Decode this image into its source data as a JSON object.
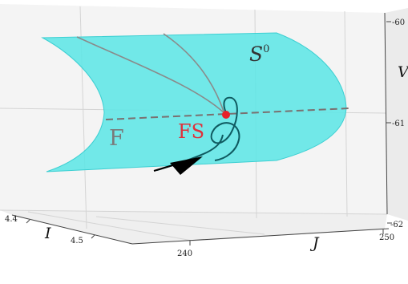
{
  "axes": {
    "v_label": "V",
    "i_label": "I",
    "j_label": "J",
    "v_ticks": [
      "-60",
      "-61",
      "-62"
    ],
    "i_ticks": [
      "4.4",
      "4.5"
    ],
    "j_ticks": [
      "240",
      "250"
    ]
  },
  "annotations": {
    "manifold_name": "S",
    "manifold_superscript": "0",
    "fold_label": "F",
    "saddle_label": "FS"
  },
  "colors": {
    "surface": "#5fe6e6",
    "surface_edge": "#3ccfd2",
    "fold_line": "#7a7070",
    "equilibrium_point": "#e8202a",
    "trajectory": "#0f5a60",
    "grid": "#d4d4d4",
    "fs_label": "#e0303a"
  }
}
